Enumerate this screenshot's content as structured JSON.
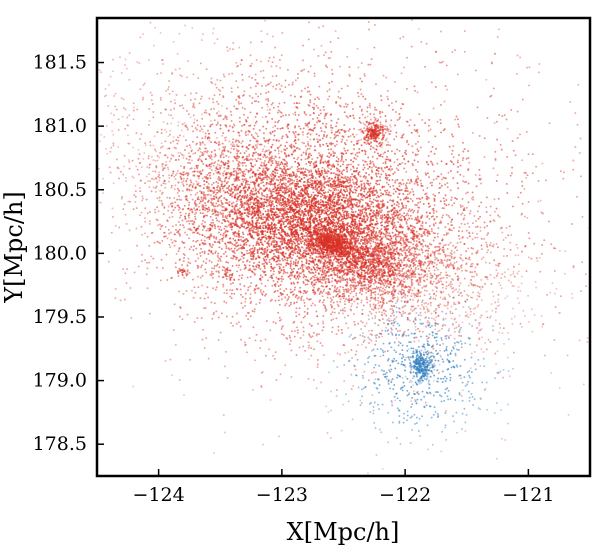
{
  "chart_data": {
    "type": "scatter",
    "title": "",
    "xlabel": "X[Mpc/h]",
    "ylabel": "Y[Mpc/h]",
    "xlim": [
      -124.5,
      -120.5
    ],
    "ylim": [
      178.25,
      181.85
    ],
    "xticks": [
      {
        "value": -124,
        "label": "−124"
      },
      {
        "value": -123,
        "label": "−123"
      },
      {
        "value": -122,
        "label": "−122"
      },
      {
        "value": -121,
        "label": "−121"
      }
    ],
    "yticks": [
      {
        "value": 178.5,
        "label": "178.5"
      },
      {
        "value": 179.0,
        "label": "179.0"
      },
      {
        "value": 179.5,
        "label": "179.5"
      },
      {
        "value": 180.0,
        "label": "180.0"
      },
      {
        "value": 180.5,
        "label": "180.5"
      },
      {
        "value": 181.0,
        "label": "181.0"
      },
      {
        "value": 181.5,
        "label": "181.5"
      }
    ],
    "grid": false,
    "legend": "none",
    "colors": {
      "red_light": "#f4826a",
      "red_mid": "#e0402e",
      "red_dark": "#9b0d0f",
      "blue_light": "#5fa3d4",
      "blue_dark": "#08306b"
    },
    "series": [
      {
        "color": "#d93025",
        "clumps": [
          {
            "cx": -122.7,
            "cy": 180.2,
            "sx": 0.62,
            "sy": 0.32,
            "rho": -0.55,
            "n": 5200
          },
          {
            "cx": -122.85,
            "cy": 180.35,
            "sx": 0.75,
            "sy": 0.55,
            "rho": -0.3,
            "n": 3200
          },
          {
            "cx": -122.5,
            "cy": 180.4,
            "sx": 0.95,
            "sy": 0.7,
            "rho": -0.1,
            "n": 1400
          },
          {
            "cx": -122.58,
            "cy": 180.07,
            "sx": 0.1,
            "sy": 0.06,
            "rho": -0.3,
            "n": 700
          },
          {
            "cx": -122.3,
            "cy": 179.9,
            "sx": 0.18,
            "sy": 0.12,
            "rho": -0.2,
            "n": 450
          },
          {
            "cx": -122.25,
            "cy": 180.95,
            "sx": 0.05,
            "sy": 0.05,
            "rho": 0.0,
            "n": 220
          },
          {
            "cx": -122.52,
            "cy": 180.55,
            "sx": 0.04,
            "sy": 0.04,
            "rho": 0.0,
            "n": 50
          },
          {
            "cx": -123.8,
            "cy": 179.85,
            "sx": 0.03,
            "sy": 0.02,
            "rho": 0.0,
            "n": 25
          },
          {
            "cx": -123.45,
            "cy": 179.83,
            "sx": 0.03,
            "sy": 0.03,
            "rho": 0.0,
            "n": 20
          }
        ]
      },
      {
        "color": "#2f7fc0",
        "clumps": [
          {
            "cx": -121.88,
            "cy": 179.1,
            "sx": 0.3,
            "sy": 0.26,
            "rho": 0.0,
            "n": 520
          },
          {
            "cx": -121.87,
            "cy": 179.12,
            "sx": 0.05,
            "sy": 0.06,
            "rho": 0.0,
            "n": 260
          }
        ]
      }
    ]
  }
}
